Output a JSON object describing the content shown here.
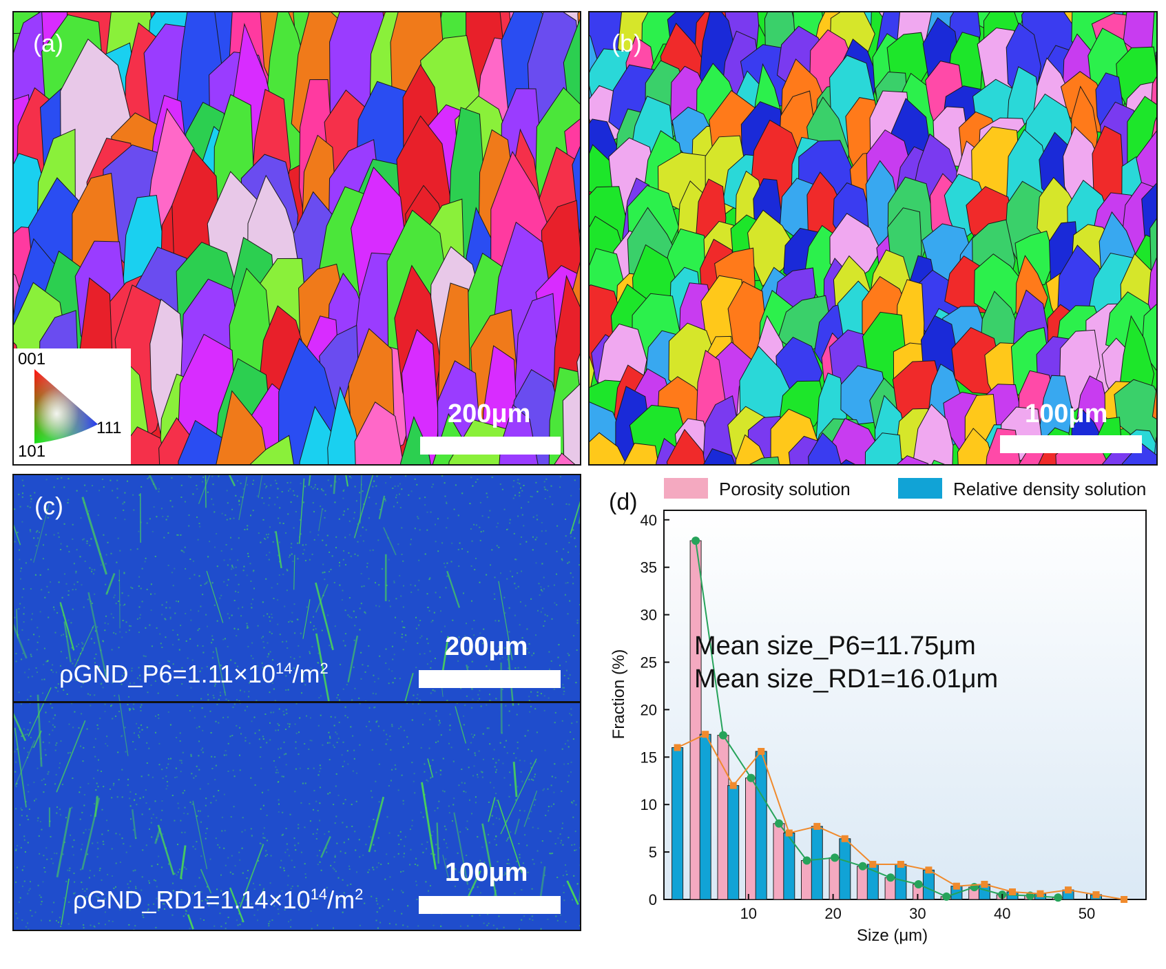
{
  "panels": {
    "a": {
      "label": "(a)",
      "scale_bar": "200μm",
      "ipf_key": {
        "top": "001",
        "bottom_left": "101",
        "bottom_right": "111"
      },
      "colors": [
        "#e8202a",
        "#f5304a",
        "#ff3aa0",
        "#d82cff",
        "#9a3cff",
        "#6a4cf0",
        "#2a4df2",
        "#1ad0f0",
        "#2ccf50",
        "#4be63a",
        "#8af03a",
        "#f07a1a",
        "#e8c8e8",
        "#ff68c8"
      ]
    },
    "b": {
      "label": "(b)",
      "scale_bar": "100μm",
      "colors": [
        "#1de62a",
        "#2cf04c",
        "#3ad06a",
        "#f02a2a",
        "#ff7a1a",
        "#ffc81a",
        "#d6e62a",
        "#3a3cf0",
        "#1a2ad8",
        "#7a3af0",
        "#c83cf0",
        "#ff4aa8",
        "#2ad8d8",
        "#38a8f0",
        "#f0a8f0"
      ]
    },
    "c": {
      "label": "(c)",
      "top": {
        "scale_bar": "200μm",
        "gnd_text": "ρGND_P6=1.11×10",
        "gnd_exp": "14",
        "gnd_unit": "/m",
        "gnd_unit_exp": "2"
      },
      "bottom": {
        "scale_bar": "100μm",
        "gnd_text": "ρGND_RD1=1.14×10",
        "gnd_exp": "14",
        "gnd_unit": "/m",
        "gnd_unit_exp": "2"
      },
      "colors": {
        "background": "#1f4dcc",
        "features": "#4ee04e"
      }
    },
    "d": {
      "label": "(d)",
      "annotations": [
        "Mean size_P6=11.75μm",
        "Mean size_RD1=16.01μm"
      ]
    }
  },
  "chart_data": {
    "type": "bar",
    "xlabel": "Size (μm)",
    "ylabel": "Fraction (%)",
    "xlim": [
      0,
      57
    ],
    "ylim": [
      0,
      41
    ],
    "xticks": [
      10,
      20,
      30,
      40,
      50
    ],
    "yticks": [
      0,
      5,
      10,
      15,
      20,
      25,
      30,
      35,
      40
    ],
    "series": [
      {
        "name": "Porosity solution",
        "color": "#f4a9c0",
        "line_color": "#26a35a",
        "x": [
          3.75,
          7.0,
          10.3,
          13.6,
          16.9,
          20.2,
          23.5,
          26.8,
          30.1,
          33.4,
          36.7,
          40.0,
          43.3,
          46.6
        ],
        "values": [
          37.8,
          17.3,
          12.8,
          8.0,
          4.1,
          4.4,
          3.5,
          2.3,
          1.6,
          0.3,
          1.3,
          0.5,
          0.4,
          0.2
        ]
      },
      {
        "name": "Relative density solution",
        "color": "#11a3d6",
        "line_color": "#f08a2c",
        "x": [
          1.6,
          4.9,
          8.2,
          11.5,
          14.8,
          18.1,
          21.4,
          24.7,
          28.0,
          31.3,
          34.6,
          37.9,
          41.2,
          44.5,
          47.8,
          51.1,
          54.4
        ],
        "values": [
          16.0,
          17.4,
          12.0,
          15.6,
          7.0,
          7.7,
          6.4,
          3.7,
          3.7,
          3.1,
          1.4,
          1.6,
          0.8,
          0.6,
          1.0,
          0.5,
          0.0
        ]
      }
    ]
  }
}
